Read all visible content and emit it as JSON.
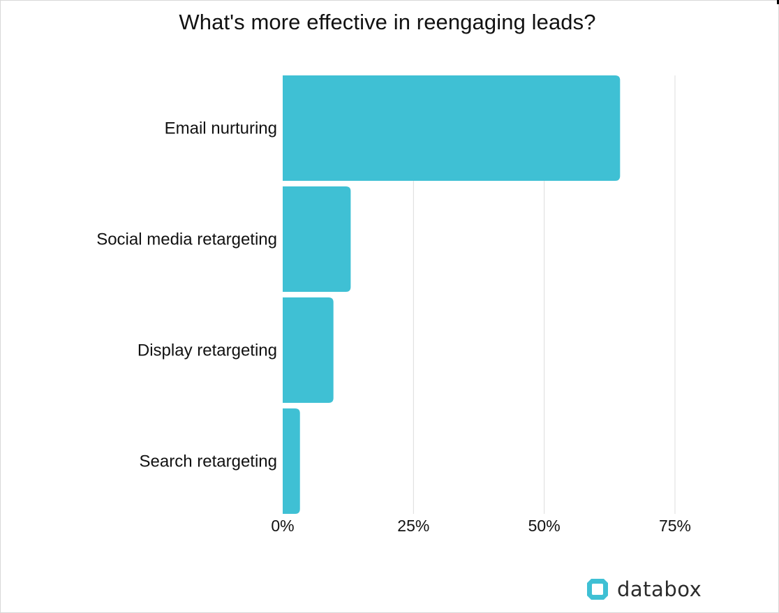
{
  "page": {
    "brand_name": "databox",
    "brand_icon": "databox-logo-icon"
  },
  "colors": {
    "bar": "#3fc0d4",
    "grid": "#dcdcdc",
    "brand_accent": "#3fc0d4"
  },
  "chart_data": {
    "type": "bar",
    "orientation": "horizontal",
    "title": "What's more effective in reengaging leads?",
    "categories": [
      "Email nurturing",
      "Social media retargeting",
      "Display retargeting",
      "Search retargeting"
    ],
    "values": [
      64.5,
      13,
      9.7,
      3.3
    ],
    "value_unit": "%",
    "xlim": [
      0,
      75
    ],
    "xticks": [
      0,
      25,
      50,
      75
    ],
    "xtick_labels": [
      "0%",
      "25%",
      "50%",
      "75%"
    ],
    "xlabel": "",
    "ylabel": "",
    "grid": true,
    "legend": "none"
  }
}
